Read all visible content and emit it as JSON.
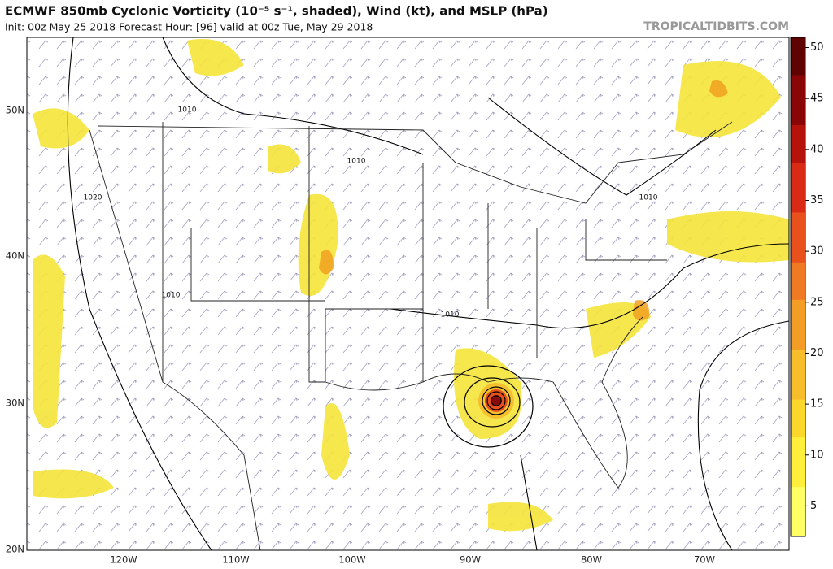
{
  "header": {
    "title": "ECMWF 850mb Cyclonic Vorticity (10⁻⁵ s⁻¹, shaded), Wind (kt), and MSLP (hPa)",
    "subtitle": "Init: 00z May 25 2018   Forecast Hour: [96]   valid at 00z Tue, May 29 2018",
    "watermark": "TROPICALTIDBITS.COM"
  },
  "map": {
    "latitude_labels": [
      "50N",
      "40N",
      "30N",
      "20N"
    ],
    "longitude_labels": [
      "120W",
      "110W",
      "100W",
      "90W",
      "80W",
      "70W"
    ],
    "isobar_labels": [
      "1010",
      "1010",
      "1020",
      "1010",
      "1010",
      "1010"
    ]
  },
  "colorbar": {
    "lim": [
      2,
      51
    ],
    "ticks": [
      5,
      10,
      15,
      20,
      25,
      30,
      35,
      40,
      45,
      50
    ]
  }
}
